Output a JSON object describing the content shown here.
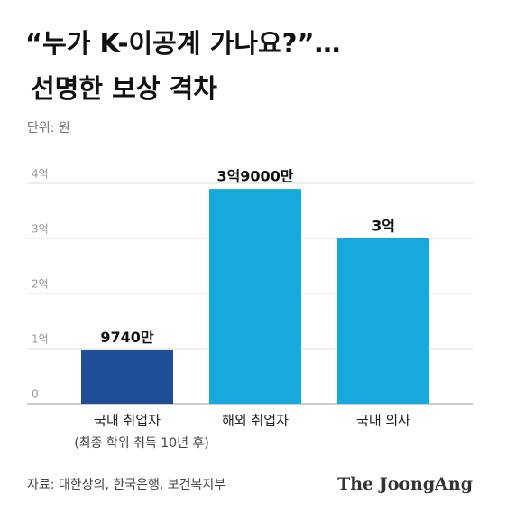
{
  "chart_data": {
    "type": "bar",
    "title_lines": [
      "“누가 K-이공계 가나요?”…",
      "선명한 보상 격차"
    ],
    "unit_label": "단위: 원",
    "categories": [
      "국내 취업자",
      "해외 취업자",
      "국내 의사"
    ],
    "category_note": "(최종 학위 취득 10년 후)",
    "values": [
      97400000,
      390000000,
      300000000
    ],
    "value_labels": [
      "9740만",
      "3억9000만",
      "3억"
    ],
    "colors": [
      "#1f4e96",
      "#16a9dc",
      "#16a9dc"
    ],
    "ylim": [
      0,
      400000000
    ],
    "yticks": [
      0,
      {
        "value": 100000000,
        "label": "1억"
      },
      {
        "value": 200000000,
        "label": "2억"
      },
      {
        "value": 300000000,
        "label": "3억"
      },
      {
        "value": 400000000,
        "label": "4억"
      }
    ],
    "grid": true,
    "source": "자료: 대한상의, 한국은행, 보건복지부",
    "publisher": "The JoongAng"
  }
}
